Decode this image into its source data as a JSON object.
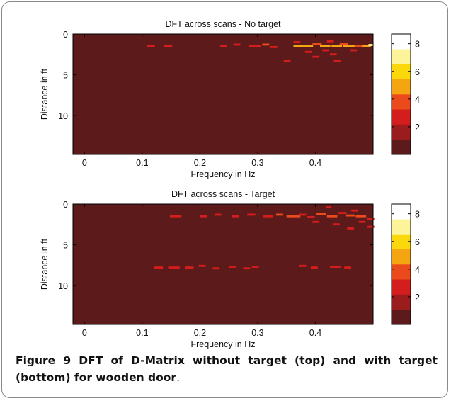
{
  "figure": {
    "label": "Figure 9",
    "caption": " DFT of D-Matrix without target (top) and with target (bottom) for wooden door",
    "caption_end": "."
  },
  "colors": {
    "background_cell": "#5c1a1a",
    "colormap": [
      "#5c1a1a",
      "#9b1c1c",
      "#d41d1d",
      "#ea4a1c",
      "#f5a512",
      "#fbd80c",
      "#fdf49a",
      "#ffffff"
    ]
  },
  "chart_data": [
    {
      "type": "heatmap",
      "title": "DFT across scans - No target",
      "xlabel": "Frequency in Hz",
      "ylabel": "Distance in ft",
      "xlim": [
        -0.02,
        0.5
      ],
      "ylim": [
        0,
        14.8
      ],
      "y_inverted": true,
      "x_ticks": [
        0,
        0.1,
        0.2,
        0.3,
        0.4
      ],
      "x_tick_labels": [
        "0",
        "0.1",
        "0.2",
        "0.3",
        "0.4"
      ],
      "y_ticks": [
        0,
        5,
        10
      ],
      "y_tick_labels": [
        "0",
        "5",
        "10"
      ],
      "colorbar": {
        "ticks": [
          2,
          4,
          6,
          8
        ],
        "tick_labels": [
          "2",
          "4",
          "6",
          "8"
        ],
        "range": [
          0,
          8.7
        ]
      },
      "cells": [
        {
          "x": 0.108,
          "y": 1.5,
          "w": 0.014,
          "level": 2
        },
        {
          "x": 0.138,
          "y": 1.5,
          "w": 0.014,
          "level": 2
        },
        {
          "x": 0.235,
          "y": 1.5,
          "w": 0.012,
          "level": 2
        },
        {
          "x": 0.258,
          "y": 1.3,
          "w": 0.012,
          "level": 2
        },
        {
          "x": 0.285,
          "y": 1.5,
          "w": 0.02,
          "level": 2
        },
        {
          "x": 0.308,
          "y": 1.3,
          "w": 0.012,
          "level": 3
        },
        {
          "x": 0.322,
          "y": 1.6,
          "w": 0.012,
          "level": 2
        },
        {
          "x": 0.345,
          "y": 3.3,
          "w": 0.012,
          "level": 2
        },
        {
          "x": 0.362,
          "y": 1.0,
          "w": 0.012,
          "level": 2
        },
        {
          "x": 0.362,
          "y": 1.5,
          "w": 0.016,
          "level": 4
        },
        {
          "x": 0.378,
          "y": 1.5,
          "w": 0.018,
          "level": 4
        },
        {
          "x": 0.382,
          "y": 2.2,
          "w": 0.012,
          "level": 2
        },
        {
          "x": 0.395,
          "y": 1.2,
          "w": 0.016,
          "level": 3
        },
        {
          "x": 0.395,
          "y": 2.8,
          "w": 0.012,
          "level": 2
        },
        {
          "x": 0.408,
          "y": 1.5,
          "w": 0.018,
          "level": 4
        },
        {
          "x": 0.412,
          "y": 2.0,
          "w": 0.012,
          "level": 2
        },
        {
          "x": 0.42,
          "y": 0.9,
          "w": 0.012,
          "level": 2
        },
        {
          "x": 0.425,
          "y": 2.5,
          "w": 0.012,
          "level": 2
        },
        {
          "x": 0.428,
          "y": 1.5,
          "w": 0.018,
          "level": 4
        },
        {
          "x": 0.432,
          "y": 3.3,
          "w": 0.012,
          "level": 2
        },
        {
          "x": 0.442,
          "y": 1.2,
          "w": 0.014,
          "level": 3
        },
        {
          "x": 0.448,
          "y": 1.5,
          "w": 0.02,
          "level": 4
        },
        {
          "x": 0.46,
          "y": 2.0,
          "w": 0.012,
          "level": 2
        },
        {
          "x": 0.468,
          "y": 1.5,
          "w": 0.016,
          "level": 3
        },
        {
          "x": 0.482,
          "y": 1.5,
          "w": 0.014,
          "level": 4
        },
        {
          "x": 0.492,
          "y": 1.35,
          "w": 0.01,
          "level": 6
        }
      ]
    },
    {
      "type": "heatmap",
      "title": "DFT across scans - Target",
      "xlabel": "Frequency in Hz",
      "ylabel": "Distance in ft",
      "xlim": [
        -0.02,
        0.5
      ],
      "ylim": [
        0,
        14.8
      ],
      "y_inverted": true,
      "x_ticks": [
        0,
        0.1,
        0.2,
        0.3,
        0.4
      ],
      "x_tick_labels": [
        "0",
        "0.1",
        "0.2",
        "0.3",
        "0.4"
      ],
      "y_ticks": [
        0,
        5,
        10
      ],
      "y_tick_labels": [
        "0",
        "5",
        "10"
      ],
      "colorbar": {
        "ticks": [
          2,
          4,
          6,
          8
        ],
        "tick_labels": [
          "2",
          "4",
          "6",
          "8"
        ],
        "range": [
          0,
          8.7
        ]
      },
      "cells": [
        {
          "x": 0.148,
          "y": 1.5,
          "w": 0.02,
          "level": 2
        },
        {
          "x": 0.2,
          "y": 1.5,
          "w": 0.012,
          "level": 2
        },
        {
          "x": 0.225,
          "y": 1.3,
          "w": 0.012,
          "level": 2
        },
        {
          "x": 0.255,
          "y": 1.5,
          "w": 0.012,
          "level": 2
        },
        {
          "x": 0.282,
          "y": 1.3,
          "w": 0.014,
          "level": 2
        },
        {
          "x": 0.31,
          "y": 1.5,
          "w": 0.016,
          "level": 2
        },
        {
          "x": 0.332,
          "y": 1.3,
          "w": 0.012,
          "level": 3
        },
        {
          "x": 0.35,
          "y": 1.5,
          "w": 0.024,
          "level": 3
        },
        {
          "x": 0.372,
          "y": 1.3,
          "w": 0.012,
          "level": 2
        },
        {
          "x": 0.385,
          "y": 1.6,
          "w": 0.014,
          "level": 2
        },
        {
          "x": 0.395,
          "y": 2.2,
          "w": 0.012,
          "level": 2
        },
        {
          "x": 0.402,
          "y": 1.2,
          "w": 0.016,
          "level": 3
        },
        {
          "x": 0.418,
          "y": 0.4,
          "w": 0.01,
          "level": 2
        },
        {
          "x": 0.42,
          "y": 1.5,
          "w": 0.018,
          "level": 3
        },
        {
          "x": 0.43,
          "y": 2.5,
          "w": 0.012,
          "level": 2
        },
        {
          "x": 0.44,
          "y": 1.1,
          "w": 0.014,
          "level": 2
        },
        {
          "x": 0.452,
          "y": 1.4,
          "w": 0.016,
          "level": 3
        },
        {
          "x": 0.455,
          "y": 3.0,
          "w": 0.012,
          "level": 2
        },
        {
          "x": 0.462,
          "y": 0.8,
          "w": 0.012,
          "level": 2
        },
        {
          "x": 0.47,
          "y": 1.5,
          "w": 0.018,
          "level": 3
        },
        {
          "x": 0.475,
          "y": 2.2,
          "w": 0.012,
          "level": 2
        },
        {
          "x": 0.49,
          "y": 1.8,
          "w": 0.012,
          "level": 2
        },
        {
          "x": 0.49,
          "y": 2.8,
          "w": 0.012,
          "level": 2
        },
        {
          "x": 0.12,
          "y": 7.8,
          "w": 0.016,
          "level": 2
        },
        {
          "x": 0.145,
          "y": 7.8,
          "w": 0.02,
          "level": 2
        },
        {
          "x": 0.175,
          "y": 7.8,
          "w": 0.014,
          "level": 2
        },
        {
          "x": 0.198,
          "y": 7.6,
          "w": 0.012,
          "level": 2
        },
        {
          "x": 0.222,
          "y": 7.9,
          "w": 0.012,
          "level": 2
        },
        {
          "x": 0.25,
          "y": 7.7,
          "w": 0.012,
          "level": 2
        },
        {
          "x": 0.275,
          "y": 7.9,
          "w": 0.012,
          "level": 2
        },
        {
          "x": 0.29,
          "y": 7.7,
          "w": 0.012,
          "level": 2
        },
        {
          "x": 0.372,
          "y": 7.6,
          "w": 0.012,
          "level": 2
        },
        {
          "x": 0.392,
          "y": 7.8,
          "w": 0.012,
          "level": 2
        },
        {
          "x": 0.425,
          "y": 7.7,
          "w": 0.02,
          "level": 2
        },
        {
          "x": 0.45,
          "y": 7.8,
          "w": 0.012,
          "level": 2
        }
      ]
    }
  ]
}
